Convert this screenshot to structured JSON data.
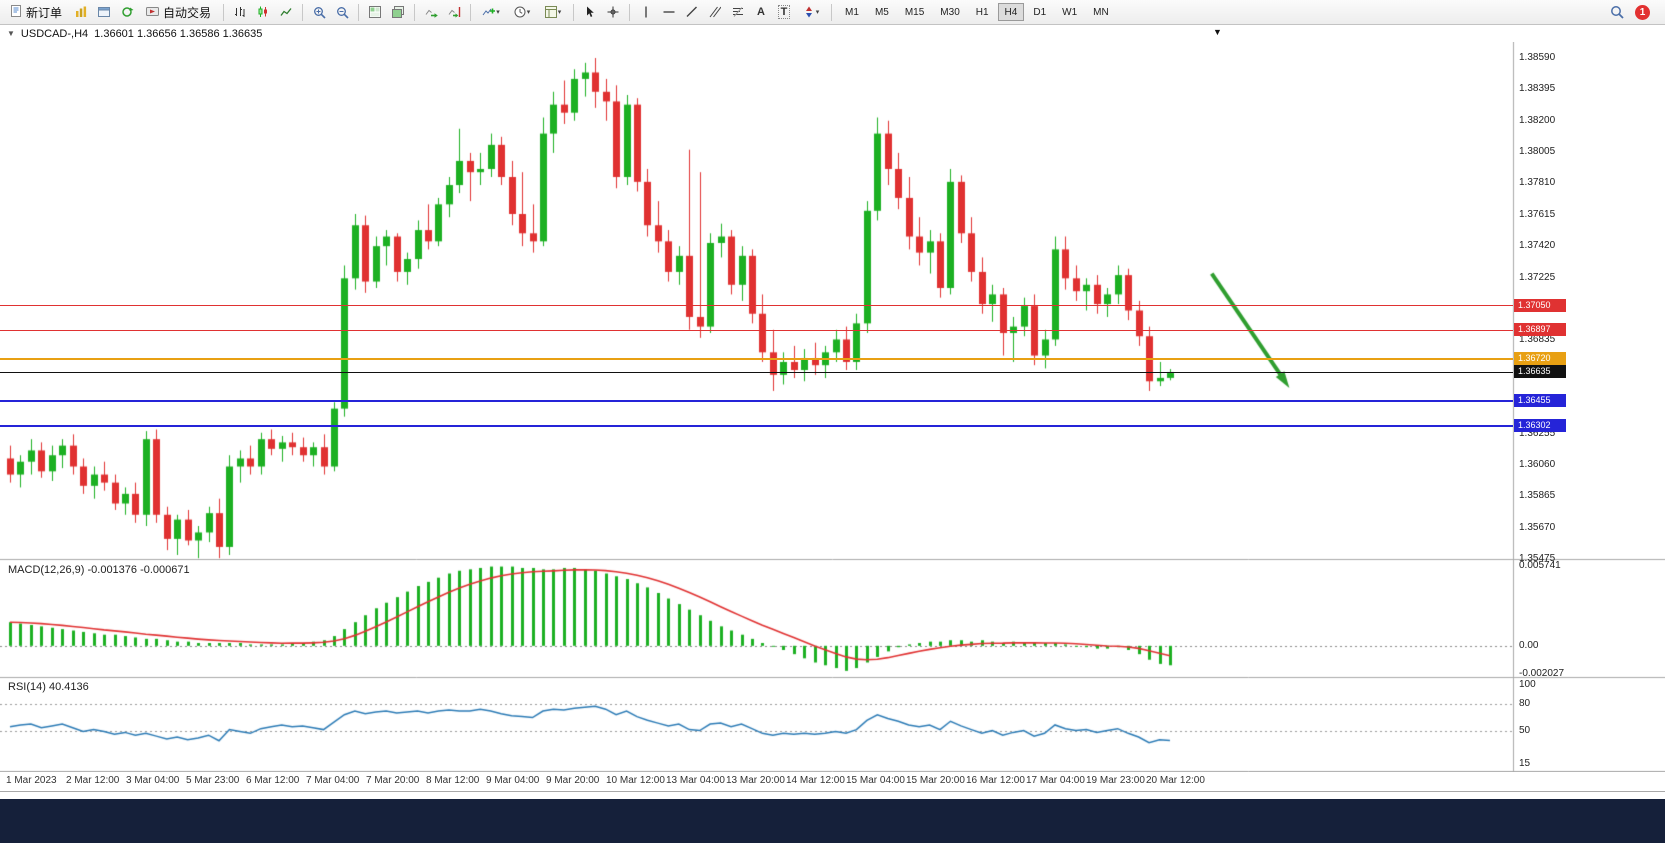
{
  "icons": {
    "caret": "▾",
    "expander": "▼",
    "shift_marker": "▼"
  },
  "toolbar": {
    "new_order": "新订单",
    "auto_trading": "自动交易",
    "text_tool": "A",
    "text_label_tool": "T",
    "timeframes": [
      "M1",
      "M5",
      "M15",
      "M30",
      "H1",
      "H4",
      "D1",
      "W1",
      "MN"
    ],
    "active_timeframe": "H4",
    "notification_count": "1"
  },
  "chart": {
    "symbol_period": "USDCAD-,H4",
    "ohlc": "1.36601 1.36656 1.36586 1.36635"
  },
  "chart_data": {
    "type": "candlestick",
    "symbol": "USDCAD",
    "timeframe": "H4",
    "price_axis": {
      "min": 1.35475,
      "max": 1.3859,
      "labels": [
        "1.38590",
        "1.38395",
        "1.38200",
        "1.38005",
        "1.37810",
        "1.37615",
        "1.37420",
        "1.37225",
        "1.36835",
        "1.36255",
        "1.36060",
        "1.35865",
        "1.35670",
        "1.35475"
      ]
    },
    "current_price": "1.36635",
    "hlines": [
      {
        "name": "resistance-line-1",
        "price": 1.3705,
        "label": "1.37050",
        "color": "#e03232",
        "thickness": 1
      },
      {
        "name": "resistance-line-2",
        "price": 1.36897,
        "label": "1.36897",
        "color": "#e03232",
        "thickness": 1
      },
      {
        "name": "pivot-line-gold",
        "price": 1.3672,
        "label": "1.36720",
        "color": "#e8a013",
        "thickness": 2
      },
      {
        "name": "current-price-line",
        "price": 1.36635,
        "label": "1.36635",
        "color": "#111111",
        "thickness": 1
      },
      {
        "name": "support-line-1",
        "price": 1.36455,
        "label": "1.36455",
        "color": "#2524d8",
        "thickness": 2
      },
      {
        "name": "support-line-2",
        "price": 1.36302,
        "label": "1.36302",
        "color": "#2524d8",
        "thickness": 2
      }
    ],
    "time_labels": [
      "1 Mar 2023",
      "2 Mar 12:00",
      "3 Mar 04:00",
      "5 Mar 23:00",
      "6 Mar 12:00",
      "7 Mar 04:00",
      "7 Mar 20:00",
      "8 Mar 12:00",
      "9 Mar 04:00",
      "9 Mar 20:00",
      "10 Mar 12:00",
      "13 Mar 04:00",
      "13 Mar 20:00",
      "14 Mar 12:00",
      "15 Mar 04:00",
      "15 Mar 20:00",
      "16 Mar 12:00",
      "17 Mar 04:00",
      "19 Mar 23:00",
      "20 Mar 12:00"
    ],
    "candles": [
      [
        1.361,
        1.3618,
        1.3595,
        1.36
      ],
      [
        1.36,
        1.3612,
        1.3592,
        1.3608
      ],
      [
        1.3608,
        1.3622,
        1.36,
        1.3615
      ],
      [
        1.3615,
        1.362,
        1.3598,
        1.3602
      ],
      [
        1.3602,
        1.3618,
        1.3596,
        1.3612
      ],
      [
        1.3612,
        1.3622,
        1.3604,
        1.3618
      ],
      [
        1.3618,
        1.3625,
        1.36,
        1.3605
      ],
      [
        1.3605,
        1.361,
        1.3588,
        1.3593
      ],
      [
        1.3593,
        1.3605,
        1.3585,
        1.36
      ],
      [
        1.36,
        1.3608,
        1.359,
        1.3595
      ],
      [
        1.3595,
        1.36,
        1.3578,
        1.3582
      ],
      [
        1.3582,
        1.3592,
        1.3575,
        1.3588
      ],
      [
        1.3588,
        1.3595,
        1.357,
        1.3575
      ],
      [
        1.3575,
        1.3627,
        1.3568,
        1.3622
      ],
      [
        1.3622,
        1.3628,
        1.357,
        1.3575
      ],
      [
        1.3575,
        1.358,
        1.3553,
        1.356
      ],
      [
        1.356,
        1.3575,
        1.355,
        1.3572
      ],
      [
        1.3572,
        1.3578,
        1.3556,
        1.3559
      ],
      [
        1.3559,
        1.3568,
        1.3548,
        1.3564
      ],
      [
        1.3564,
        1.358,
        1.3558,
        1.3576
      ],
      [
        1.3576,
        1.3585,
        1.3548,
        1.3555
      ],
      [
        1.3555,
        1.3612,
        1.355,
        1.3605
      ],
      [
        1.3605,
        1.3615,
        1.3595,
        1.361
      ],
      [
        1.361,
        1.3618,
        1.36,
        1.3605
      ],
      [
        1.3605,
        1.3626,
        1.36,
        1.3622
      ],
      [
        1.3622,
        1.3628,
        1.3612,
        1.3616
      ],
      [
        1.3616,
        1.3624,
        1.3608,
        1.362
      ],
      [
        1.362,
        1.3626,
        1.3612,
        1.3617
      ],
      [
        1.3617,
        1.3623,
        1.3608,
        1.3612
      ],
      [
        1.3612,
        1.362,
        1.3605,
        1.3617
      ],
      [
        1.3617,
        1.3625,
        1.36,
        1.3605
      ],
      [
        1.3605,
        1.3645,
        1.3602,
        1.3641
      ],
      [
        1.3641,
        1.373,
        1.3636,
        1.3722
      ],
      [
        1.3722,
        1.3762,
        1.3715,
        1.3755
      ],
      [
        1.3755,
        1.3761,
        1.3713,
        1.372
      ],
      [
        1.372,
        1.3748,
        1.3716,
        1.3742
      ],
      [
        1.3742,
        1.3752,
        1.373,
        1.3748
      ],
      [
        1.3748,
        1.375,
        1.372,
        1.3726
      ],
      [
        1.3726,
        1.3738,
        1.3718,
        1.3734
      ],
      [
        1.3734,
        1.3758,
        1.3728,
        1.3752
      ],
      [
        1.3752,
        1.3768,
        1.374,
        1.3745
      ],
      [
        1.3745,
        1.3772,
        1.3742,
        1.3768
      ],
      [
        1.3768,
        1.3785,
        1.376,
        1.378
      ],
      [
        1.378,
        1.3815,
        1.3775,
        1.3795
      ],
      [
        1.3795,
        1.38,
        1.377,
        1.3788
      ],
      [
        1.3788,
        1.38,
        1.378,
        1.379
      ],
      [
        1.379,
        1.3812,
        1.3785,
        1.3805
      ],
      [
        1.3805,
        1.381,
        1.378,
        1.3785
      ],
      [
        1.3785,
        1.3795,
        1.3755,
        1.3762
      ],
      [
        1.3762,
        1.3788,
        1.3742,
        1.375
      ],
      [
        1.375,
        1.3768,
        1.3738,
        1.3745
      ],
      [
        1.3745,
        1.3822,
        1.3742,
        1.3812
      ],
      [
        1.3812,
        1.3838,
        1.38,
        1.383
      ],
      [
        1.383,
        1.3845,
        1.3818,
        1.3825
      ],
      [
        1.3825,
        1.3852,
        1.382,
        1.3846
      ],
      [
        1.3846,
        1.3856,
        1.3835,
        1.385
      ],
      [
        1.385,
        1.3859,
        1.3828,
        1.3838
      ],
      [
        1.3838,
        1.3846,
        1.382,
        1.3832
      ],
      [
        1.3832,
        1.3842,
        1.3778,
        1.3785
      ],
      [
        1.3785,
        1.3836,
        1.378,
        1.383
      ],
      [
        1.383,
        1.3834,
        1.3776,
        1.3782
      ],
      [
        1.3782,
        1.379,
        1.3748,
        1.3755
      ],
      [
        1.3755,
        1.377,
        1.3738,
        1.3745
      ],
      [
        1.3745,
        1.3752,
        1.372,
        1.3726
      ],
      [
        1.3726,
        1.3742,
        1.3718,
        1.3736
      ],
      [
        1.3736,
        1.3802,
        1.369,
        1.3698
      ],
      [
        1.3698,
        1.3788,
        1.3685,
        1.3692
      ],
      [
        1.3692,
        1.375,
        1.3688,
        1.3744
      ],
      [
        1.3744,
        1.3756,
        1.3735,
        1.3748
      ],
      [
        1.3748,
        1.3752,
        1.3712,
        1.3718
      ],
      [
        1.3718,
        1.3742,
        1.3708,
        1.3736
      ],
      [
        1.3736,
        1.374,
        1.3694,
        1.37
      ],
      [
        1.37,
        1.3712,
        1.367,
        1.3676
      ],
      [
        1.3676,
        1.369,
        1.3652,
        1.3662
      ],
      [
        1.3662,
        1.3676,
        1.3656,
        1.367
      ],
      [
        1.367,
        1.368,
        1.366,
        1.3665
      ],
      [
        1.3665,
        1.3678,
        1.3658,
        1.3672
      ],
      [
        1.3672,
        1.3682,
        1.3662,
        1.3668
      ],
      [
        1.3668,
        1.368,
        1.366,
        1.3676
      ],
      [
        1.3676,
        1.369,
        1.367,
        1.3684
      ],
      [
        1.3684,
        1.3692,
        1.3665,
        1.367
      ],
      [
        1.367,
        1.37,
        1.3665,
        1.3694
      ],
      [
        1.3694,
        1.377,
        1.3688,
        1.3764
      ],
      [
        1.3764,
        1.3822,
        1.3758,
        1.3812
      ],
      [
        1.3812,
        1.382,
        1.378,
        1.379
      ],
      [
        1.379,
        1.38,
        1.3765,
        1.3772
      ],
      [
        1.3772,
        1.3785,
        1.374,
        1.3748
      ],
      [
        1.3748,
        1.376,
        1.373,
        1.3738
      ],
      [
        1.3738,
        1.3752,
        1.3725,
        1.3745
      ],
      [
        1.3745,
        1.375,
        1.371,
        1.3716
      ],
      [
        1.3716,
        1.379,
        1.3712,
        1.3782
      ],
      [
        1.3782,
        1.3786,
        1.3744,
        1.375
      ],
      [
        1.375,
        1.376,
        1.372,
        1.3726
      ],
      [
        1.3726,
        1.3735,
        1.37,
        1.3706
      ],
      [
        1.3706,
        1.3718,
        1.3695,
        1.3712
      ],
      [
        1.3712,
        1.3716,
        1.3674,
        1.3688
      ],
      [
        1.3688,
        1.3698,
        1.367,
        1.3692
      ],
      [
        1.3692,
        1.371,
        1.3686,
        1.3705
      ],
      [
        1.3705,
        1.3712,
        1.3668,
        1.3674
      ],
      [
        1.3674,
        1.369,
        1.3666,
        1.3684
      ],
      [
        1.3684,
        1.3748,
        1.368,
        1.374
      ],
      [
        1.374,
        1.3748,
        1.3715,
        1.3722
      ],
      [
        1.3722,
        1.373,
        1.3708,
        1.3714
      ],
      [
        1.3714,
        1.3722,
        1.3702,
        1.3718
      ],
      [
        1.3718,
        1.3724,
        1.37,
        1.3706
      ],
      [
        1.3706,
        1.3716,
        1.3698,
        1.3712
      ],
      [
        1.3712,
        1.373,
        1.3706,
        1.3724
      ],
      [
        1.3724,
        1.3728,
        1.3696,
        1.3702
      ],
      [
        1.3702,
        1.3708,
        1.368,
        1.3686
      ],
      [
        1.3686,
        1.3692,
        1.3652,
        1.3658
      ],
      [
        1.3658,
        1.367,
        1.3655,
        1.36601
      ],
      [
        1.36601,
        1.36656,
        1.36586,
        1.36635
      ]
    ],
    "macd": {
      "label": "MACD(12,26,9)",
      "values_text": "-0.001376 -0.000671",
      "axis_labels": [
        "0.005741",
        "0.00",
        "-0.002027"
      ],
      "axis_values": [
        0.005741,
        0,
        -0.002027
      ],
      "range": {
        "min": -0.002027,
        "max": 0.005741
      },
      "histogram": [
        0.0017,
        0.0016,
        0.0015,
        0.0014,
        0.0013,
        0.0012,
        0.0011,
        0.001,
        0.0009,
        0.0008,
        0.0008,
        0.0007,
        0.0006,
        0.0005,
        0.0005,
        0.0004,
        0.0003,
        0.0003,
        0.0002,
        0.0002,
        0.0002,
        0.0002,
        0.0002,
        0.0001,
        0.0001,
        0.0001,
        0.0001,
        0.0002,
        0.0002,
        0.0003,
        0.0004,
        0.0007,
        0.0012,
        0.0017,
        0.0022,
        0.0027,
        0.0031,
        0.0035,
        0.0039,
        0.0043,
        0.0046,
        0.0049,
        0.0052,
        0.0054,
        0.0055,
        0.0056,
        0.0057,
        0.0057,
        0.0057,
        0.0056,
        0.0056,
        0.0055,
        0.0055,
        0.0056,
        0.0056,
        0.0055,
        0.0054,
        0.0052,
        0.005,
        0.0048,
        0.0045,
        0.0042,
        0.0038,
        0.0034,
        0.003,
        0.0026,
        0.0022,
        0.0018,
        0.0014,
        0.0011,
        0.0008,
        0.0005,
        0.0002,
        0.0,
        -0.0003,
        -0.0006,
        -0.0009,
        -0.0012,
        -0.0014,
        -0.0016,
        -0.0018,
        -0.0016,
        -0.0012,
        -0.0008,
        -0.0004,
        -0.0001,
        0.0001,
        0.0002,
        0.0003,
        0.0003,
        0.0004,
        0.0004,
        0.0003,
        0.0004,
        0.0003,
        0.0002,
        0.0003,
        0.0002,
        0.0002,
        0.0002,
        0.0002,
        0.0001,
        0.0,
        -0.0001,
        -0.0002,
        -0.0002,
        -0.0001,
        -0.0003,
        -0.0006,
        -0.001,
        -0.0013,
        -0.0014
      ]
    },
    "rsi": {
      "label": "RSI(14)",
      "value_text": "40.4136",
      "axis_labels": [
        "100",
        "80",
        "50",
        "15"
      ],
      "axis_values": [
        100,
        80,
        50,
        15
      ],
      "levels": [
        80,
        50
      ],
      "range": {
        "min": 15,
        "max": 100
      },
      "values": [
        55,
        57,
        58,
        54,
        56,
        58,
        54,
        50,
        52,
        50,
        47,
        49,
        46,
        48,
        45,
        42,
        44,
        41,
        43,
        46,
        40,
        52,
        50,
        48,
        53,
        55,
        57,
        55,
        56,
        54,
        52,
        60,
        68,
        72,
        69,
        71,
        72,
        70,
        71,
        72,
        70,
        72,
        73,
        72,
        72,
        74,
        72,
        69,
        67,
        66,
        65,
        72,
        74,
        73,
        75,
        76,
        77,
        74,
        68,
        72,
        66,
        62,
        59,
        56,
        58,
        52,
        51,
        58,
        59,
        55,
        58,
        53,
        48,
        46,
        48,
        47,
        48,
        47,
        48,
        50,
        48,
        52,
        62,
        68,
        64,
        61,
        57,
        55,
        57,
        52,
        61,
        56,
        52,
        48,
        51,
        46,
        49,
        51,
        45,
        48,
        57,
        53,
        51,
        52,
        49,
        51,
        53,
        48,
        44,
        38,
        41,
        40.41
      ]
    },
    "annotation_arrow": {
      "color": "#2f9e2f",
      "from": {
        "bar": 115,
        "price": 1.3725
      },
      "to": {
        "bar": 122,
        "price": 1.3658
      }
    },
    "colors": {
      "up": "#1cb022",
      "down": "#e03131",
      "macd_hist": "#1cb022",
      "macd_signal": "#e03131",
      "rsi_line": "#2a7ab5"
    }
  }
}
